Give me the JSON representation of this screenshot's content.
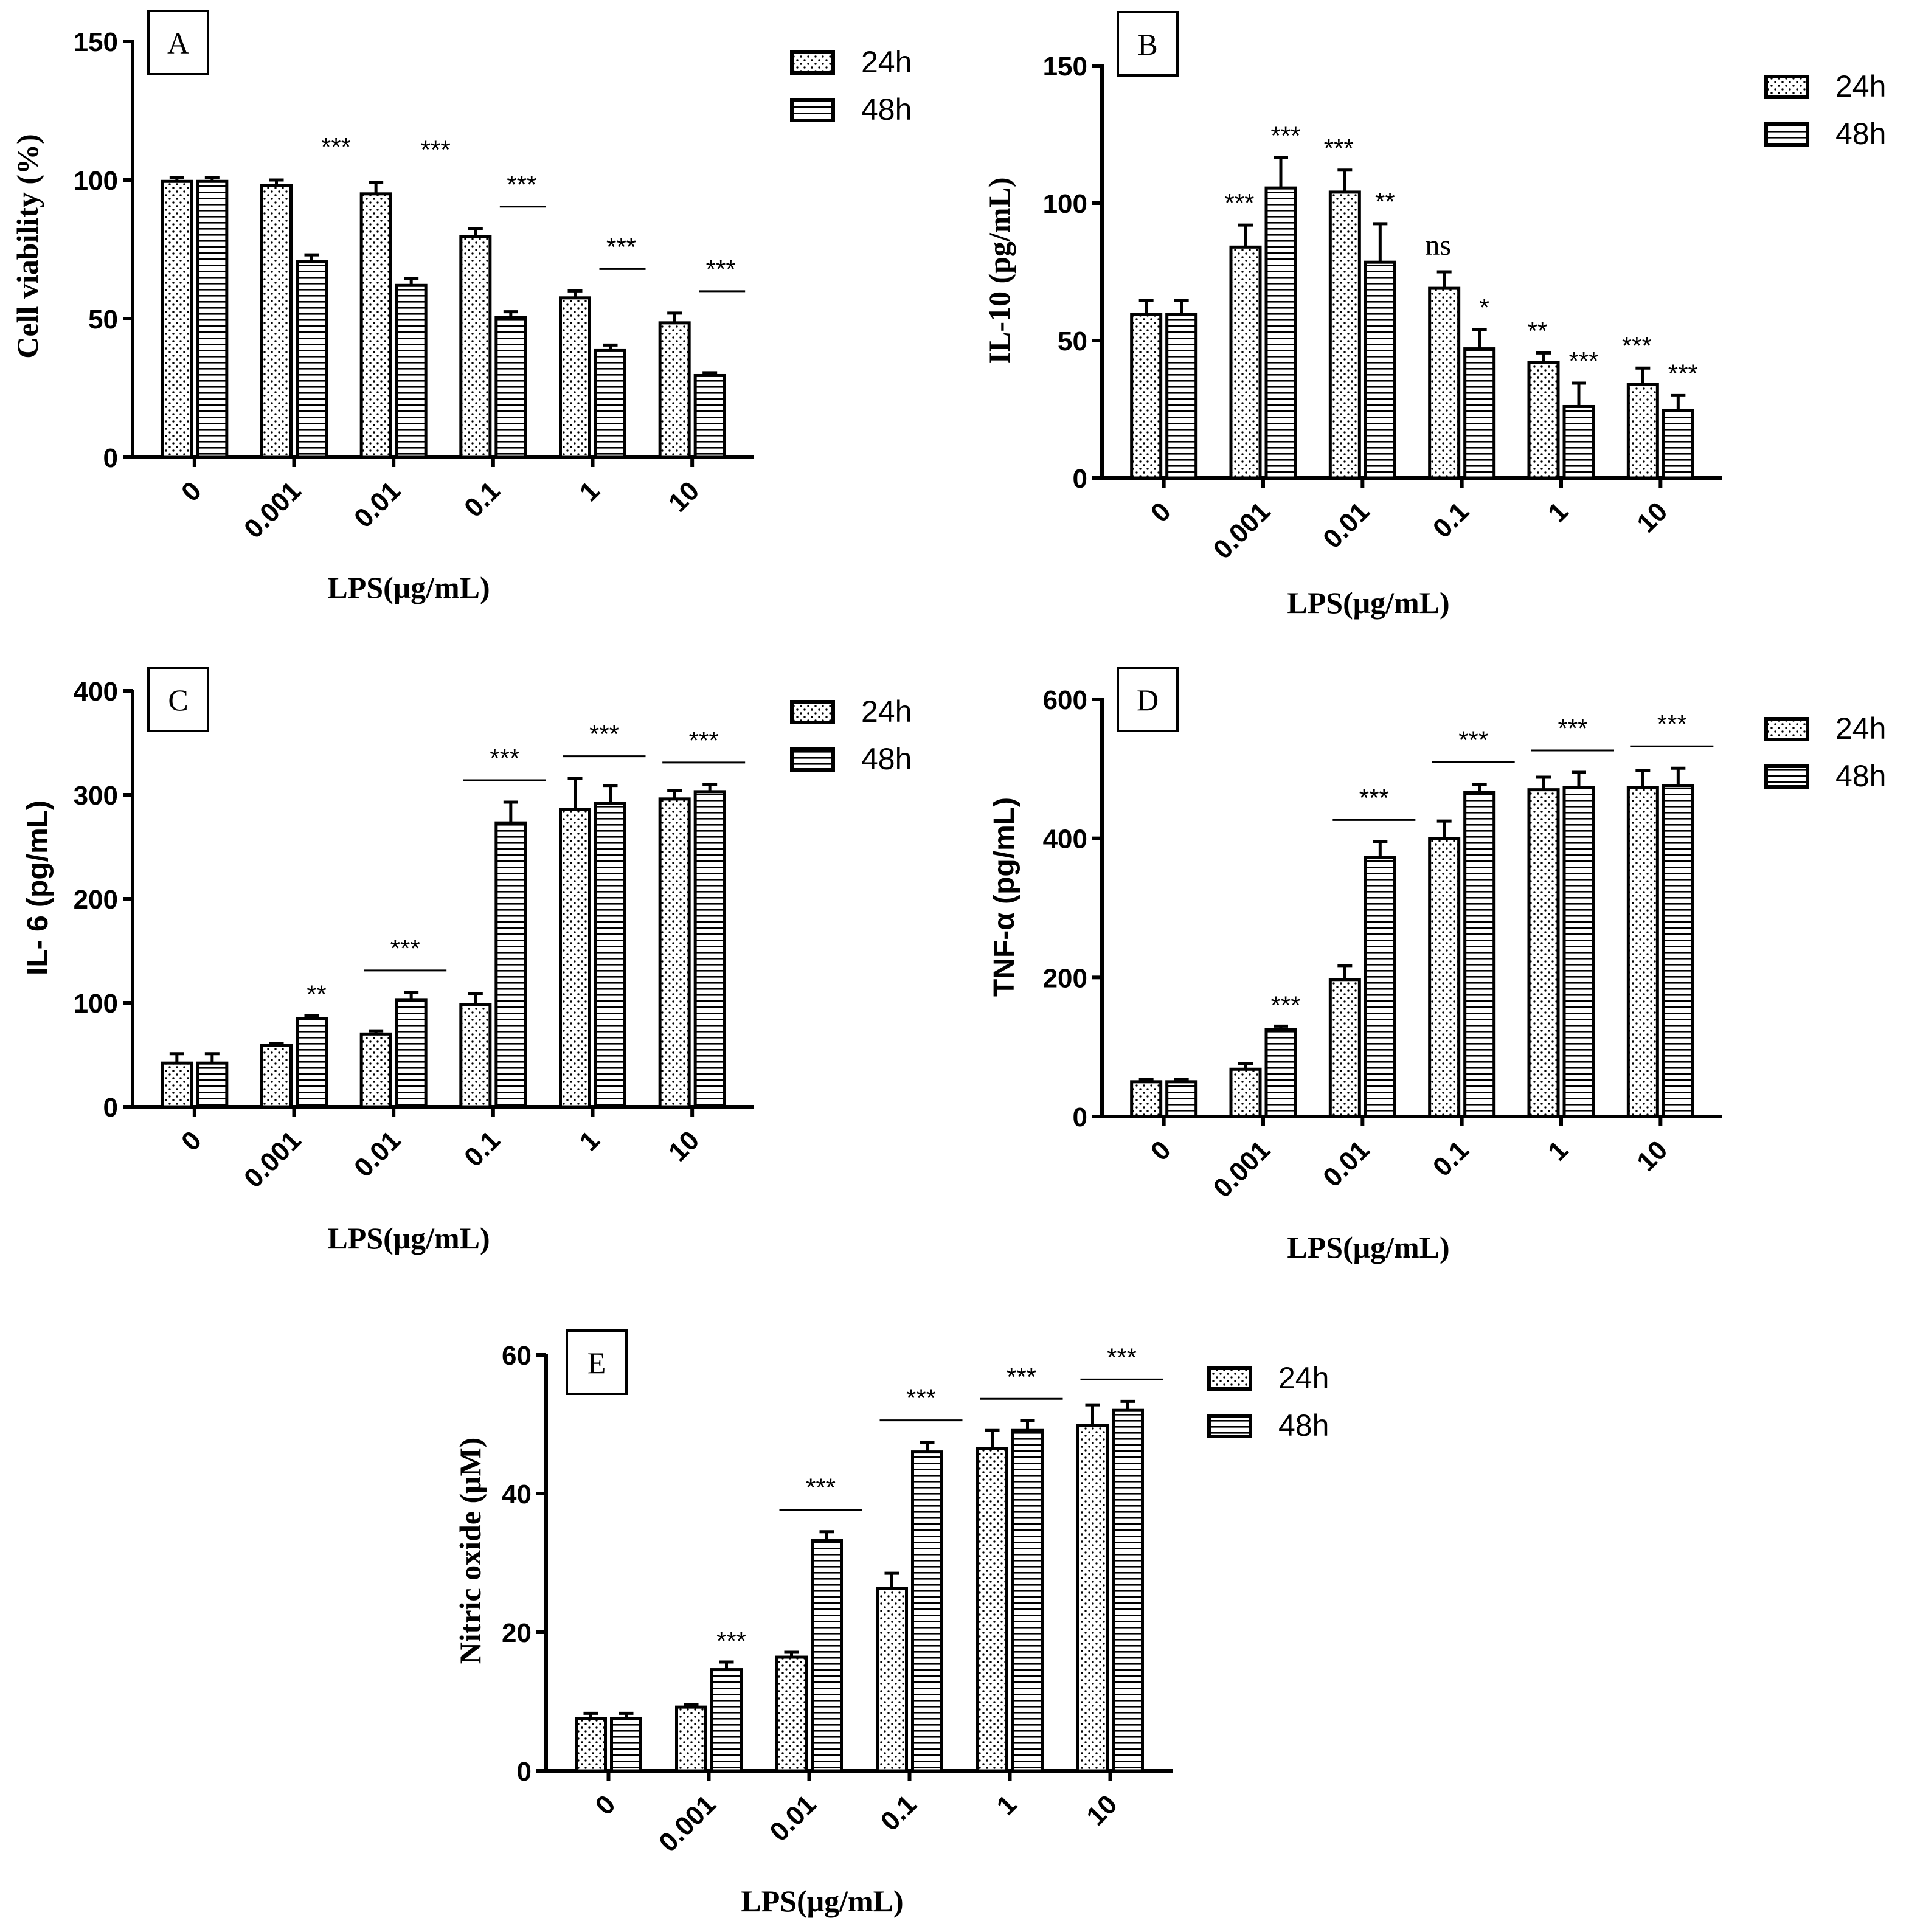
{
  "figure": {
    "panel_letters": [
      "A",
      "B",
      "C",
      "D",
      "E"
    ],
    "legend_labels": [
      "24h",
      "48h"
    ],
    "colors": {
      "ink": "#000000",
      "background": "#ffffff"
    }
  },
  "chart_data": [
    {
      "type": "bar",
      "panel": "A",
      "title": "",
      "xlabel": "LPS(μg/mL)",
      "ylabel": "Cell viability (%)",
      "ylim": [
        0,
        150
      ],
      "yticks": [
        "0",
        "50",
        "100",
        "150"
      ],
      "categories": [
        "0",
        "0.001",
        "0.01",
        "0.1",
        "1",
        "10"
      ],
      "series": [
        {
          "name": "24h",
          "values": [
            99.5,
            98,
            95,
            79.5,
            57.5,
            48.5
          ],
          "errors": [
            1.5,
            2,
            4,
            3,
            2.5,
            3.5
          ]
        },
        {
          "name": "48h",
          "values": [
            99.5,
            70.5,
            62,
            50.5,
            38.5,
            29.5
          ],
          "errors": [
            1.5,
            2.5,
            2.5,
            2,
            2,
            1
          ]
        }
      ],
      "significance": [
        "",
        "***",
        "***",
        "***",
        "***",
        "***"
      ],
      "significance_bars": [
        false,
        false,
        false,
        true,
        true,
        true
      ]
    },
    {
      "type": "bar",
      "panel": "B",
      "title": "",
      "xlabel": "LPS(μg/mL)",
      "ylabel": "IL-10 (pg/mL)",
      "ylim": [
        0,
        150
      ],
      "yticks": [
        "0",
        "50",
        "100",
        "150"
      ],
      "categories": [
        "0",
        "0.001",
        "0.01",
        "0.1",
        "1",
        "10"
      ],
      "series": [
        {
          "name": "24h",
          "values": [
            59.5,
            84,
            104,
            69,
            42,
            34
          ],
          "errors": [
            5,
            8,
            8,
            6,
            3.5,
            6
          ]
        },
        {
          "name": "48h",
          "values": [
            59.5,
            105.5,
            78.5,
            47,
            26,
            24.5
          ],
          "errors": [
            5,
            11,
            14,
            7,
            8.5,
            5.5
          ]
        }
      ],
      "significance_24h": [
        "",
        "***",
        "***",
        "ns",
        "**",
        "***"
      ],
      "significance_48h": [
        "",
        "***",
        "**",
        "*",
        "***",
        "***"
      ]
    },
    {
      "type": "bar",
      "panel": "C",
      "title": "",
      "xlabel": "LPS(μg/mL)",
      "ylabel": "IL- 6 (pg/mL)",
      "ylim": [
        0,
        400
      ],
      "yticks": [
        "0",
        "100",
        "200",
        "300",
        "400"
      ],
      "categories": [
        "0",
        "0.001",
        "0.01",
        "0.1",
        "1",
        "10"
      ],
      "series": [
        {
          "name": "24h",
          "values": [
            42,
            59,
            70,
            98,
            286,
            296
          ],
          "errors": [
            9,
            2,
            3,
            11,
            30,
            8
          ]
        },
        {
          "name": "48h",
          "values": [
            42,
            85,
            103,
            273,
            292,
            303
          ],
          "errors": [
            9,
            3,
            7,
            20,
            17,
            7
          ]
        }
      ],
      "significance": [
        "",
        "**",
        "***",
        "***",
        "***",
        "***"
      ],
      "significance_bars": [
        false,
        false,
        true,
        true,
        true,
        true
      ]
    },
    {
      "type": "bar",
      "panel": "D",
      "title": "",
      "xlabel": "LPS(μg/mL)",
      "ylabel": "TNF-α (pg/mL)",
      "ylim": [
        0,
        600
      ],
      "yticks": [
        "0",
        "200",
        "400",
        "600"
      ],
      "categories": [
        "0",
        "0.001",
        "0.01",
        "0.1",
        "1",
        "10"
      ],
      "series": [
        {
          "name": "24h",
          "values": [
            50,
            68,
            197,
            400,
            470,
            473
          ],
          "errors": [
            3,
            8,
            20,
            25,
            18,
            25
          ]
        },
        {
          "name": "48h",
          "values": [
            50,
            125,
            373,
            466,
            473,
            476
          ],
          "errors": [
            3,
            5,
            22,
            12,
            22,
            25
          ]
        }
      ],
      "significance": [
        "",
        "***",
        "***",
        "***",
        "***",
        "***"
      ],
      "significance_bars": [
        false,
        false,
        true,
        true,
        true,
        true
      ]
    },
    {
      "type": "bar",
      "panel": "E",
      "title": "",
      "xlabel": "LPS(μg/mL)",
      "ylabel": "Nitric oxide (μM)",
      "ylim": [
        0,
        60
      ],
      "yticks": [
        "0",
        "20",
        "40",
        "60"
      ],
      "categories": [
        "0",
        "0.001",
        "0.01",
        "0.1",
        "1",
        "10"
      ],
      "series": [
        {
          "name": "24h",
          "values": [
            7.5,
            9.2,
            16.4,
            26.3,
            46.5,
            49.8
          ],
          "errors": [
            0.8,
            0.4,
            0.7,
            2.2,
            2.6,
            3
          ]
        },
        {
          "name": "48h",
          "values": [
            7.5,
            14.6,
            33.2,
            46,
            49.1,
            52
          ],
          "errors": [
            0.8,
            1.1,
            1.3,
            1.4,
            1.4,
            1.3
          ]
        }
      ],
      "significance": [
        "",
        "***",
        "***",
        "***",
        "***",
        "***"
      ],
      "significance_bars": [
        false,
        false,
        true,
        true,
        true,
        true
      ]
    }
  ]
}
